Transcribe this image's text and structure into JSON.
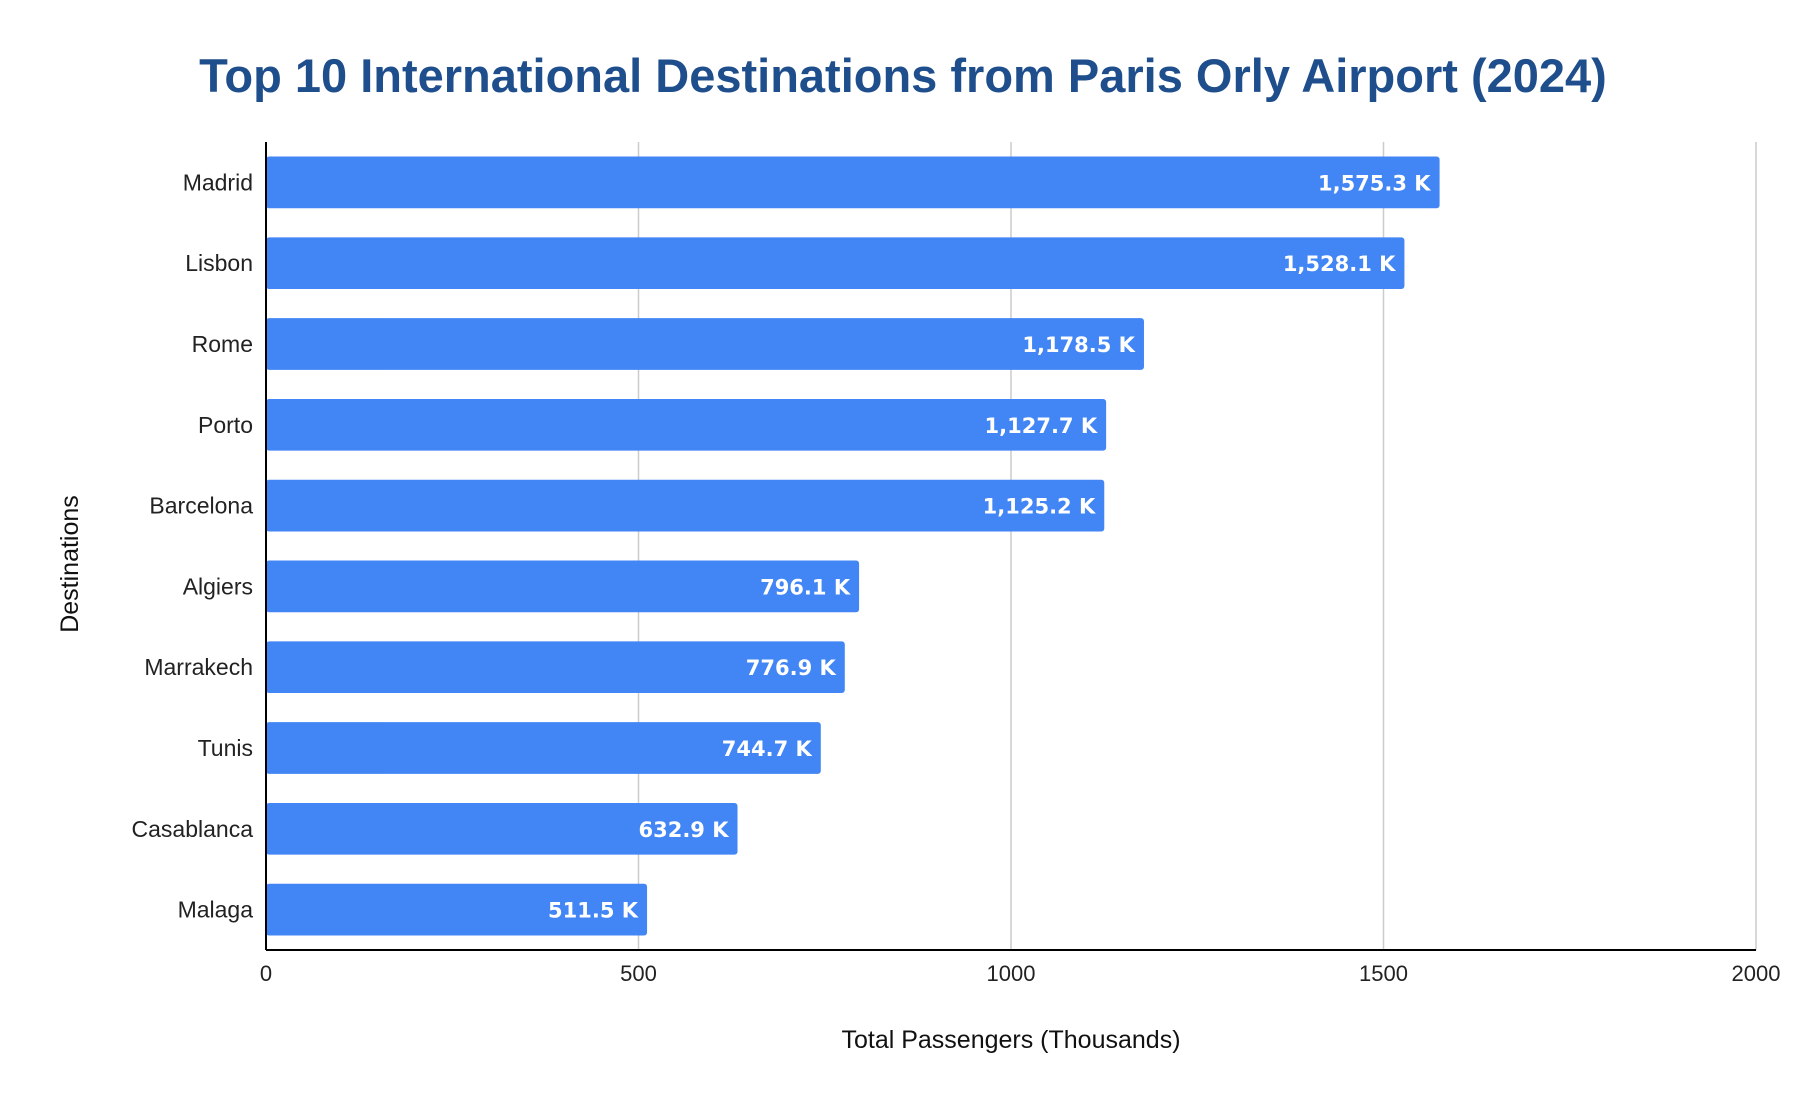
{
  "chart_data": {
    "type": "bar",
    "orientation": "horizontal",
    "title": "Top 10 International Destinations from Paris Orly Airport (2024)",
    "xlabel": "Total Passengers (Thousands)",
    "ylabel": "Destinations",
    "categories": [
      "Madrid",
      "Lisbon",
      "Rome",
      "Porto",
      "Barcelona",
      "Algiers",
      "Marrakech",
      "Tunis",
      "Casablanca",
      "Malaga"
    ],
    "values": [
      1575.3,
      1528.1,
      1178.5,
      1127.7,
      1125.2,
      796.1,
      776.9,
      744.7,
      632.9,
      511.5
    ],
    "data_labels": [
      "1,575.3 K",
      "1,528.1 K",
      "1,178.5 K",
      "1,127.7 K",
      "1,125.2 K",
      "796.1 K",
      "776.9 K",
      "744.7 K",
      "632.9 K",
      "511.5 K"
    ],
    "xlim": [
      0,
      2000
    ],
    "xticks": [
      "0",
      "500",
      "1000",
      "1500",
      "2000"
    ],
    "xtick_values": [
      0,
      500,
      1000,
      1500,
      2000
    ],
    "grid": "vertical",
    "legend": "none",
    "colors": {
      "bar": "#4285f4",
      "title": "#1f4e8c",
      "grid": "#cccccc",
      "axis": "#000000"
    }
  }
}
